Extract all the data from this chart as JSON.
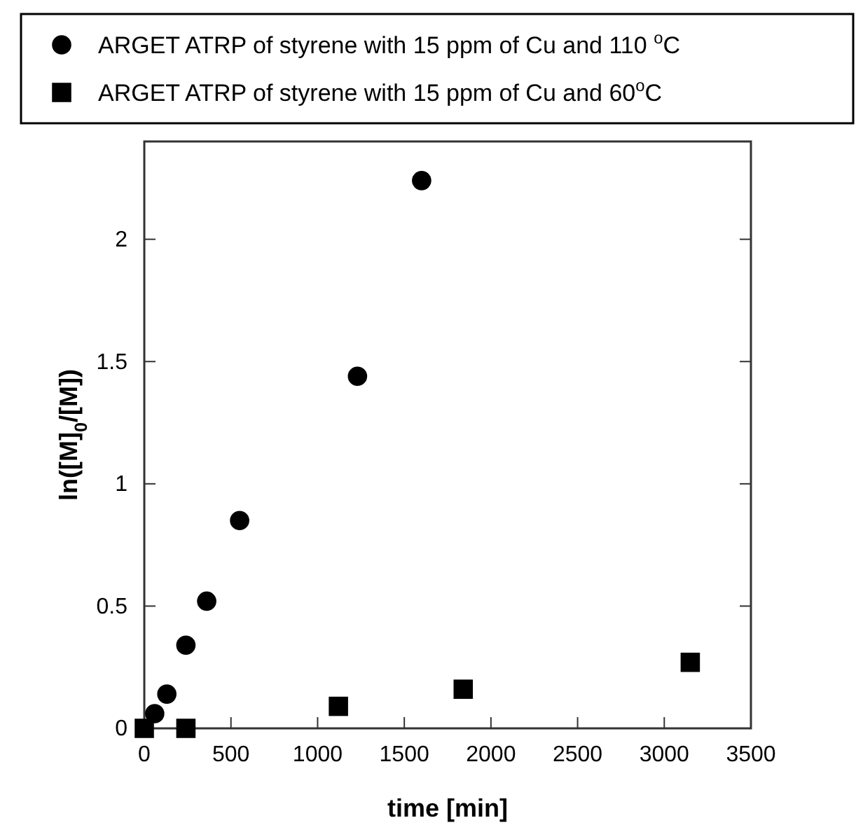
{
  "chart_data": {
    "type": "scatter",
    "xlabel": "time [min]",
    "ylabel": "ln([M]$_{0}$/[M])",
    "xlim": [
      0,
      3500
    ],
    "xticks": [
      0,
      500,
      1000,
      1500,
      2000,
      2500,
      3000,
      3500
    ],
    "ylim": [
      0,
      2.4
    ],
    "yticks": [
      0,
      0.5,
      1,
      1.5,
      2
    ],
    "grid": false,
    "legend": "top",
    "series": [
      {
        "name": "ARGET ATRP of styrene with 15 ppm of Cu and 110 $^{o}$C",
        "color": "#000000",
        "marker": "circle",
        "x": [
          60,
          130,
          240,
          360,
          550,
          1230,
          1600
        ],
        "values": [
          0.06,
          0.14,
          0.34,
          0.52,
          0.85,
          1.44,
          2.24
        ]
      },
      {
        "name": "ARGET ATRP of styrene with 15 ppm of Cu and 60$^{o}$C",
        "color": "#000000",
        "marker": "square",
        "x": [
          0,
          240,
          1120,
          1840,
          3150
        ],
        "values": [
          0,
          0,
          0.09,
          0.16,
          0.27
        ]
      }
    ]
  }
}
